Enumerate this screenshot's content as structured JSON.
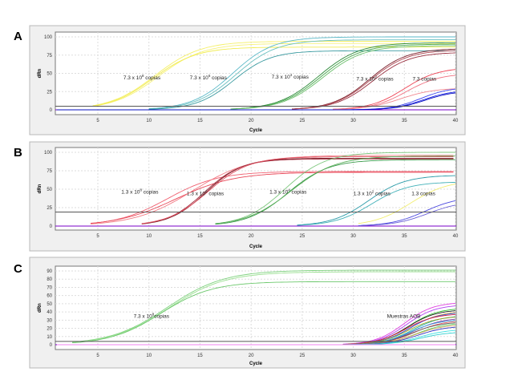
{
  "chart_data": [
    {
      "type": "line",
      "panel_label": "A",
      "xlabel": "Cycle",
      "ylabel": "dRn",
      "xlim": [
        1,
        40
      ],
      "ylim": [
        -5,
        105
      ],
      "xticks": [
        5,
        10,
        15,
        20,
        25,
        30,
        35,
        40
      ],
      "yticks": [
        0,
        25,
        50,
        75,
        100
      ],
      "grid": true,
      "threshold_dRn": 5,
      "annotations": [
        {
          "text": "7.3 x 10",
          "sup": "8",
          "suffix": " copias",
          "cycle": 7.5,
          "dRn": 42
        },
        {
          "text": "7.3  x 10",
          "sup": "6",
          "suffix": " copias",
          "cycle": 14,
          "dRn": 42
        },
        {
          "text": "7.3 x 10",
          "sup": "4",
          "suffix": " copias",
          "cycle": 22,
          "dRn": 43
        },
        {
          "text": "7.3 x 10",
          "sup": "2",
          "suffix": " copias",
          "cycle": 30.3,
          "dRn": 40
        },
        {
          "text": "7.3 copias",
          "sup": "",
          "suffix": "",
          "cycle": 35.8,
          "dRn": 40
        }
      ],
      "series": [
        {
          "color": "#f5f06a",
          "start_cycle": 4.5,
          "midpoint_cycle": 10.6,
          "plateau_dRn": 94,
          "steepness": 0.45
        },
        {
          "color": "#f7f27a",
          "start_cycle": 4.5,
          "midpoint_cycle": 10.9,
          "plateau_dRn": 91,
          "steepness": 0.45
        },
        {
          "color": "#f1ec50",
          "start_cycle": 4.5,
          "midpoint_cycle": 10.4,
          "plateau_dRn": 86,
          "steepness": 0.47
        },
        {
          "color": "#5ab9c8",
          "start_cycle": 10,
          "midpoint_cycle": 18.2,
          "plateau_dRn": 100,
          "steepness": 0.5
        },
        {
          "color": "#6ac0c0",
          "start_cycle": 10,
          "midpoint_cycle": 18.5,
          "plateau_dRn": 96,
          "steepness": 0.5
        },
        {
          "color": "#3a9aa0",
          "start_cycle": 10,
          "midpoint_cycle": 18.3,
          "plateau_dRn": 81,
          "steepness": 0.55
        },
        {
          "color": "#2e8b3a",
          "start_cycle": 18,
          "midpoint_cycle": 26.6,
          "plateau_dRn": 92,
          "steepness": 0.5
        },
        {
          "color": "#4aa84f",
          "start_cycle": 18,
          "midpoint_cycle": 26.8,
          "plateau_dRn": 90,
          "steepness": 0.5
        },
        {
          "color": "#6cbf6c",
          "start_cycle": 18,
          "midpoint_cycle": 27.0,
          "plateau_dRn": 88,
          "steepness": 0.5
        },
        {
          "color": "#7a1f2a",
          "start_cycle": 24,
          "midpoint_cycle": 31.6,
          "plateau_dRn": 84,
          "steepness": 0.55
        },
        {
          "color": "#9a3040",
          "start_cycle": 24,
          "midpoint_cycle": 31.9,
          "plateau_dRn": 79,
          "steepness": 0.55
        },
        {
          "color": "#b04a55",
          "start_cycle": 24,
          "midpoint_cycle": 31.7,
          "plateau_dRn": 82,
          "steepness": 0.55
        },
        {
          "color": "#ee4455",
          "start_cycle": 28,
          "midpoint_cycle": 35.0,
          "plateau_dRn": 58,
          "steepness": 0.6
        },
        {
          "color": "#f07080",
          "start_cycle": 28,
          "midpoint_cycle": 35.2,
          "plateau_dRn": 50,
          "steepness": 0.6
        },
        {
          "color": "#f08890",
          "start_cycle": 28,
          "midpoint_cycle": 34.6,
          "plateau_dRn": 30,
          "steepness": 0.6
        },
        {
          "color": "#1a22e0",
          "start_cycle": 1,
          "midpoint_cycle": 36.8,
          "plateau_dRn": 27,
          "steepness": 0.7
        },
        {
          "color": "#3a44f0",
          "start_cycle": 1,
          "midpoint_cycle": 36.6,
          "plateau_dRn": 31,
          "steepness": 0.7
        },
        {
          "color": "#0a10c0",
          "start_cycle": 1,
          "midpoint_cycle": 37.0,
          "plateau_dRn": 26,
          "steepness": 0.7
        }
      ]
    },
    {
      "type": "line",
      "panel_label": "B",
      "xlabel": "Cycle",
      "ylabel": "dRn",
      "xlim": [
        1,
        40
      ],
      "ylim": [
        -5,
        105
      ],
      "xticks": [
        5,
        10,
        15,
        20,
        25,
        30,
        35,
        40
      ],
      "yticks": [
        0,
        25,
        50,
        75,
        100
      ],
      "grid": true,
      "threshold_dRn": 19,
      "annotations": [
        {
          "text": "1.3 x 10",
          "sup": "8",
          "suffix": " copias",
          "cycle": 7.3,
          "dRn": 44
        },
        {
          "text": "1.3  x 10",
          "sup": "6",
          "suffix": " copias",
          "cycle": 13.7,
          "dRn": 42
        },
        {
          "text": "1.3 x 10",
          "sup": "4",
          "suffix": " copias",
          "cycle": 21.8,
          "dRn": 44
        },
        {
          "text": "1.3 x 10",
          "sup": "2",
          "suffix": " copias",
          "cycle": 30,
          "dRn": 42
        },
        {
          "text": "1.3 copias",
          "sup": "",
          "suffix": "",
          "cycle": 35.7,
          "dRn": 42
        }
      ],
      "series": [
        {
          "color": "#f06070",
          "start_cycle": 4.3,
          "midpoint_cycle": 11.8,
          "plateau_dRn": 74,
          "steepness": 0.4
        },
        {
          "color": "#e84858",
          "start_cycle": 4.3,
          "midpoint_cycle": 12.6,
          "plateau_dRn": 73,
          "steepness": 0.35
        },
        {
          "color": "#f27b85",
          "start_cycle": 4.3,
          "midpoint_cycle": 14.3,
          "plateau_dRn": 96,
          "steepness": 0.35
        },
        {
          "color": "#7a1f2a",
          "start_cycle": 9.3,
          "midpoint_cycle": 15.6,
          "plateau_dRn": 92,
          "steepness": 0.55
        },
        {
          "color": "#a83040",
          "start_cycle": 9.3,
          "midpoint_cycle": 15.4,
          "plateau_dRn": 91,
          "steepness": 0.55
        },
        {
          "color": "#e05060",
          "start_cycle": 9.3,
          "midpoint_cycle": 15.8,
          "plateau_dRn": 94,
          "steepness": 0.5
        },
        {
          "color": "#7cc77c",
          "start_cycle": 16.5,
          "midpoint_cycle": 23.3,
          "plateau_dRn": 100,
          "steepness": 0.5
        },
        {
          "color": "#3a9a4a",
          "start_cycle": 16.5,
          "midpoint_cycle": 23.6,
          "plateau_dRn": 90,
          "steepness": 0.5
        },
        {
          "color": "#5aaf5a",
          "start_cycle": 16.5,
          "midpoint_cycle": 23.9,
          "plateau_dRn": 95,
          "steepness": 0.45
        },
        {
          "color": "#2a9aa8",
          "start_cycle": 24.5,
          "midpoint_cycle": 31.5,
          "plateau_dRn": 69,
          "steepness": 0.55
        },
        {
          "color": "#40b0b8",
          "start_cycle": 24.5,
          "midpoint_cycle": 31.8,
          "plateau_dRn": 60,
          "steepness": 0.55
        },
        {
          "color": "#f2ee70",
          "start_cycle": 30.5,
          "midpoint_cycle": 35.6,
          "plateau_dRn": 62,
          "steepness": 0.55
        },
        {
          "color": "#4a48e0",
          "start_cycle": 30.5,
          "midpoint_cycle": 37.0,
          "plateau_dRn": 40,
          "steepness": 0.6
        },
        {
          "color": "#6a60d8",
          "start_cycle": 30.5,
          "midpoint_cycle": 37.3,
          "plateau_dRn": 34,
          "steepness": 0.6
        }
      ]
    },
    {
      "type": "line",
      "panel_label": "C",
      "xlabel": "Cycle",
      "ylabel": "dRn",
      "xlim": [
        1,
        40
      ],
      "ylim": [
        -4,
        94
      ],
      "xticks": [
        5,
        10,
        15,
        20,
        25,
        30,
        35,
        40
      ],
      "yticks": [
        0,
        10,
        20,
        30,
        40,
        50,
        60,
        70,
        80,
        90
      ],
      "grid": true,
      "threshold_dRn": 4,
      "annotations": [
        {
          "text": "7.3 x 10",
          "sup": "8",
          "suffix": "copias",
          "cycle": 8.5,
          "dRn": 33
        },
        {
          "text": "Muestras AOB",
          "sup": "",
          "suffix": "",
          "cycle": 33.3,
          "dRn": 33
        }
      ],
      "series": [
        {
          "color": "#7fd27f",
          "start_cycle": 2.5,
          "midpoint_cycle": 11.8,
          "plateau_dRn": 91,
          "steepness": 0.36
        },
        {
          "color": "#9adf90",
          "start_cycle": 2.5,
          "midpoint_cycle": 11.9,
          "plateau_dRn": 89,
          "steepness": 0.36
        },
        {
          "color": "#6cc86c",
          "start_cycle": 2.5,
          "midpoint_cycle": 11.2,
          "plateau_dRn": 77,
          "steepness": 0.4
        },
        {
          "color": "#e040e0",
          "start_cycle": 29,
          "midpoint_cycle": 35.0,
          "plateau_dRn": 52,
          "steepness": 0.7
        },
        {
          "color": "#b040f0",
          "start_cycle": 29,
          "midpoint_cycle": 35.2,
          "plateau_dRn": 49,
          "steepness": 0.7
        },
        {
          "color": "#30c030",
          "start_cycle": 29,
          "midpoint_cycle": 35.4,
          "plateau_dRn": 45,
          "steepness": 0.7
        },
        {
          "color": "#222222",
          "start_cycle": 29,
          "midpoint_cycle": 35.3,
          "plateau_dRn": 43,
          "steepness": 0.7
        },
        {
          "color": "#f0a020",
          "start_cycle": 29,
          "midpoint_cycle": 35.6,
          "plateau_dRn": 41,
          "steepness": 0.7
        },
        {
          "color": "#2060f0",
          "start_cycle": 29,
          "midpoint_cycle": 35.5,
          "plateau_dRn": 40,
          "steepness": 0.7
        },
        {
          "color": "#e02040",
          "start_cycle": 29,
          "midpoint_cycle": 35.1,
          "plateau_dRn": 38,
          "steepness": 0.7
        },
        {
          "color": "#20b0a0",
          "start_cycle": 29,
          "midpoint_cycle": 35.8,
          "plateau_dRn": 36,
          "steepness": 0.7
        },
        {
          "color": "#a0a020",
          "start_cycle": 29,
          "midpoint_cycle": 35.4,
          "plateau_dRn": 35,
          "steepness": 0.7
        },
        {
          "color": "#8040a0",
          "start_cycle": 29,
          "midpoint_cycle": 35.9,
          "plateau_dRn": 33,
          "steepness": 0.7
        },
        {
          "color": "#40a0e0",
          "start_cycle": 29,
          "midpoint_cycle": 35.6,
          "plateau_dRn": 31,
          "steepness": 0.7
        },
        {
          "color": "#f06060",
          "start_cycle": 29,
          "midpoint_cycle": 36.0,
          "plateau_dRn": 30,
          "steepness": 0.7
        },
        {
          "color": "#606060",
          "start_cycle": 29,
          "midpoint_cycle": 35.7,
          "plateau_dRn": 28,
          "steepness": 0.7
        },
        {
          "color": "#60d060",
          "start_cycle": 29,
          "midpoint_cycle": 36.2,
          "plateau_dRn": 27,
          "steepness": 0.7
        },
        {
          "color": "#d0a060",
          "start_cycle": 29,
          "midpoint_cycle": 36.1,
          "plateau_dRn": 25,
          "steepness": 0.7
        },
        {
          "color": "#3030c0",
          "start_cycle": 29,
          "midpoint_cycle": 36.3,
          "plateau_dRn": 23,
          "steepness": 0.7
        },
        {
          "color": "#40e0e0",
          "start_cycle": 29,
          "midpoint_cycle": 36.5,
          "plateau_dRn": 19,
          "steepness": 0.7
        },
        {
          "color": "#30d0d0",
          "start_cycle": 29,
          "midpoint_cycle": 36.6,
          "plateau_dRn": 16,
          "steepness": 0.7
        },
        {
          "color": "#f080f0",
          "start_cycle": 1,
          "midpoint_cycle": 60,
          "plateau_dRn": 0,
          "steepness": 0.7
        }
      ]
    }
  ]
}
